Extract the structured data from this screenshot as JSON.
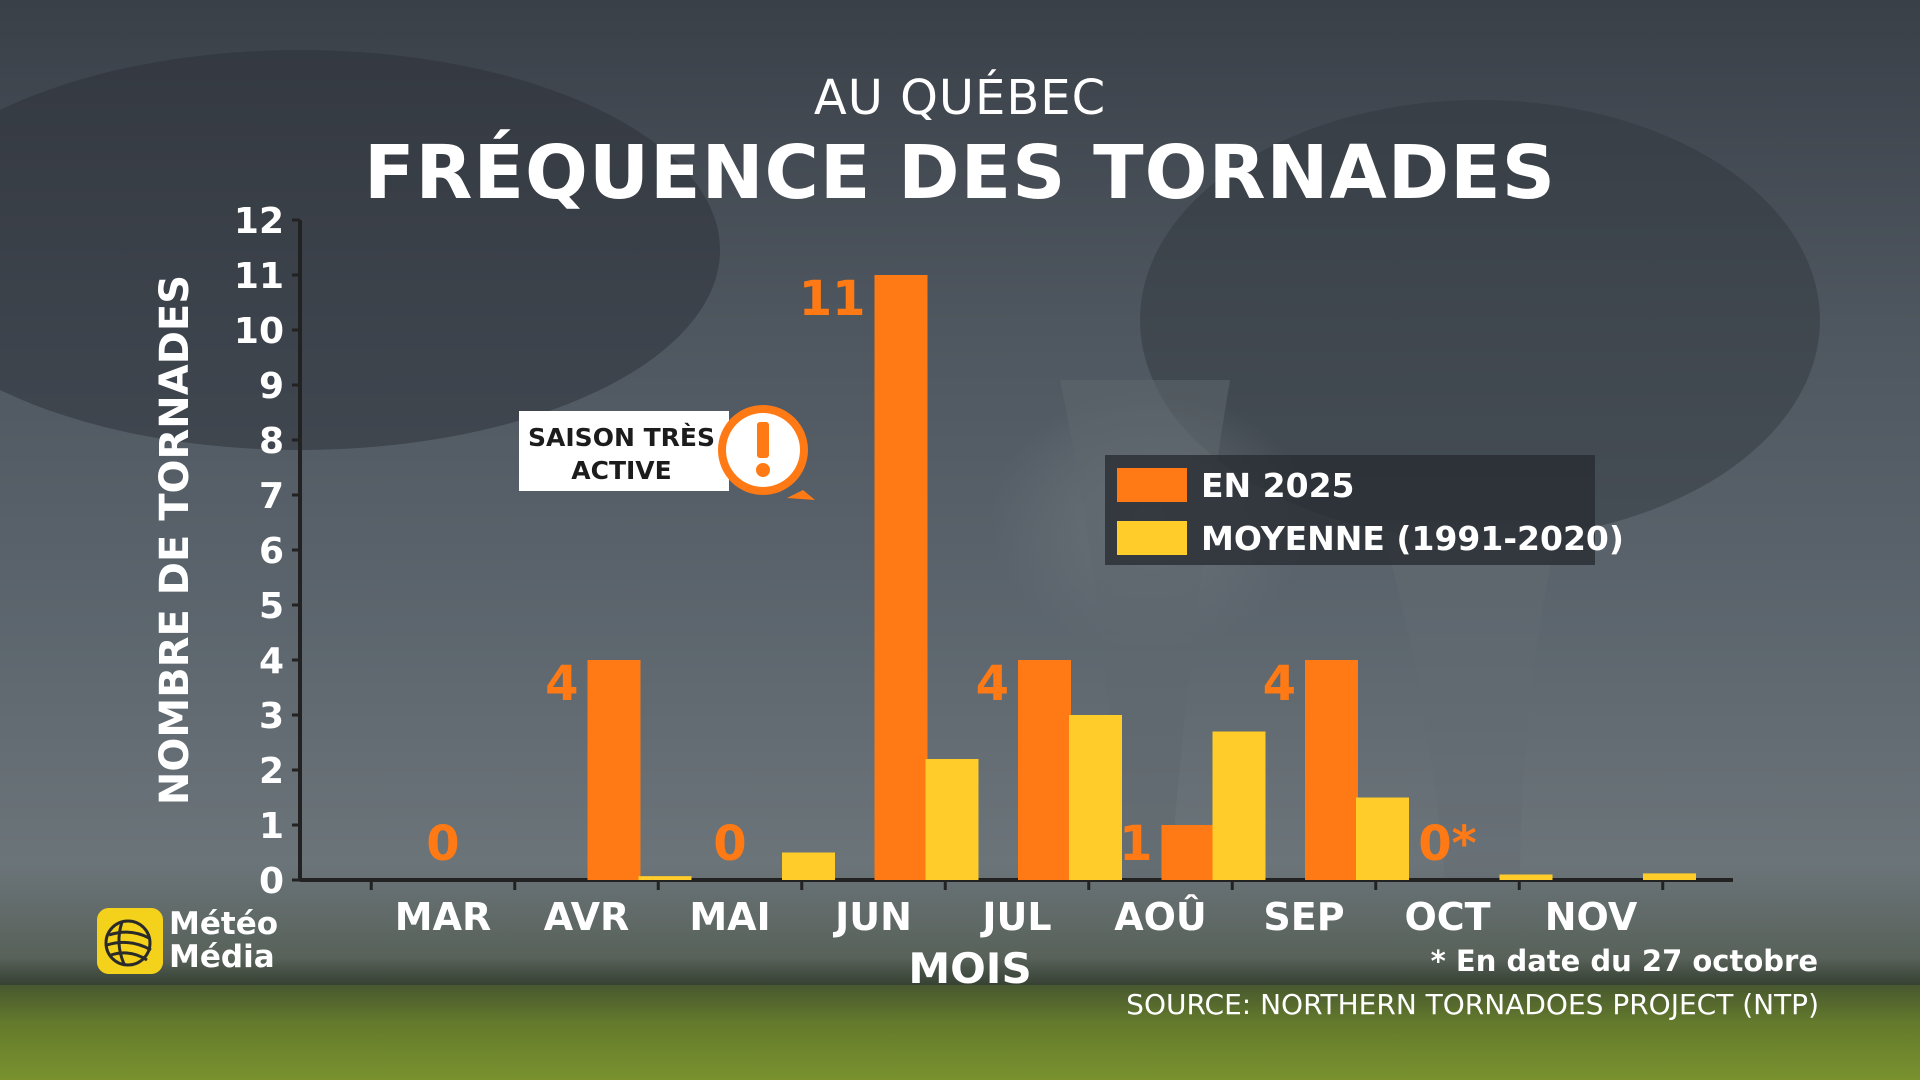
{
  "header": {
    "subtitle": "AU QUÉBEC",
    "title": "FRÉQUENCE DES TORNADES"
  },
  "callout": {
    "text": "SAISON TRÈS\nACTIVE",
    "icon": "exclamation-icon"
  },
  "legend": {
    "items": [
      {
        "label": "EN 2025",
        "color": "#ff7a14"
      },
      {
        "label": "MOYENNE (1991-2020)",
        "color": "#ffcc29"
      }
    ]
  },
  "footer": {
    "note": "* En date du 27 octobre",
    "source": "SOURCE: NORTHERN TORNADOES PROJECT (NTP)",
    "logo_line1": "Météo",
    "logo_line2": "Média"
  },
  "colors": {
    "series_2025": "#ff7a14",
    "series_average": "#ffcc29",
    "value_label": "#ff7a14",
    "axis": "#222222",
    "text": "#ffffff"
  },
  "chart_data": {
    "type": "bar",
    "xlabel": "MOIS",
    "ylabel": "NOMBRE DE TORNADES",
    "ylim": [
      0,
      12
    ],
    "yticks": [
      "0",
      "1",
      "2",
      "3",
      "4",
      "5",
      "6",
      "7",
      "8",
      "9",
      "10",
      "11",
      "12"
    ],
    "categories": [
      "MAR",
      "AVR",
      "MAI",
      "JUN",
      "JUL",
      "AOÛ",
      "SEP",
      "OCT",
      "NOV"
    ],
    "series": [
      {
        "name": "EN 2025",
        "values": [
          0,
          4,
          0,
          11,
          4,
          1,
          4,
          0,
          null
        ]
      },
      {
        "name": "MOYENNE (1991-2020)",
        "values": [
          0,
          0.07,
          0.5,
          2.2,
          3.0,
          2.7,
          1.5,
          0.1,
          0.12
        ]
      }
    ],
    "value_labels": [
      "0",
      "4",
      "0",
      "11",
      "4",
      "1",
      "4",
      "0*",
      ""
    ],
    "grid": false,
    "legend_position": "center-right"
  }
}
